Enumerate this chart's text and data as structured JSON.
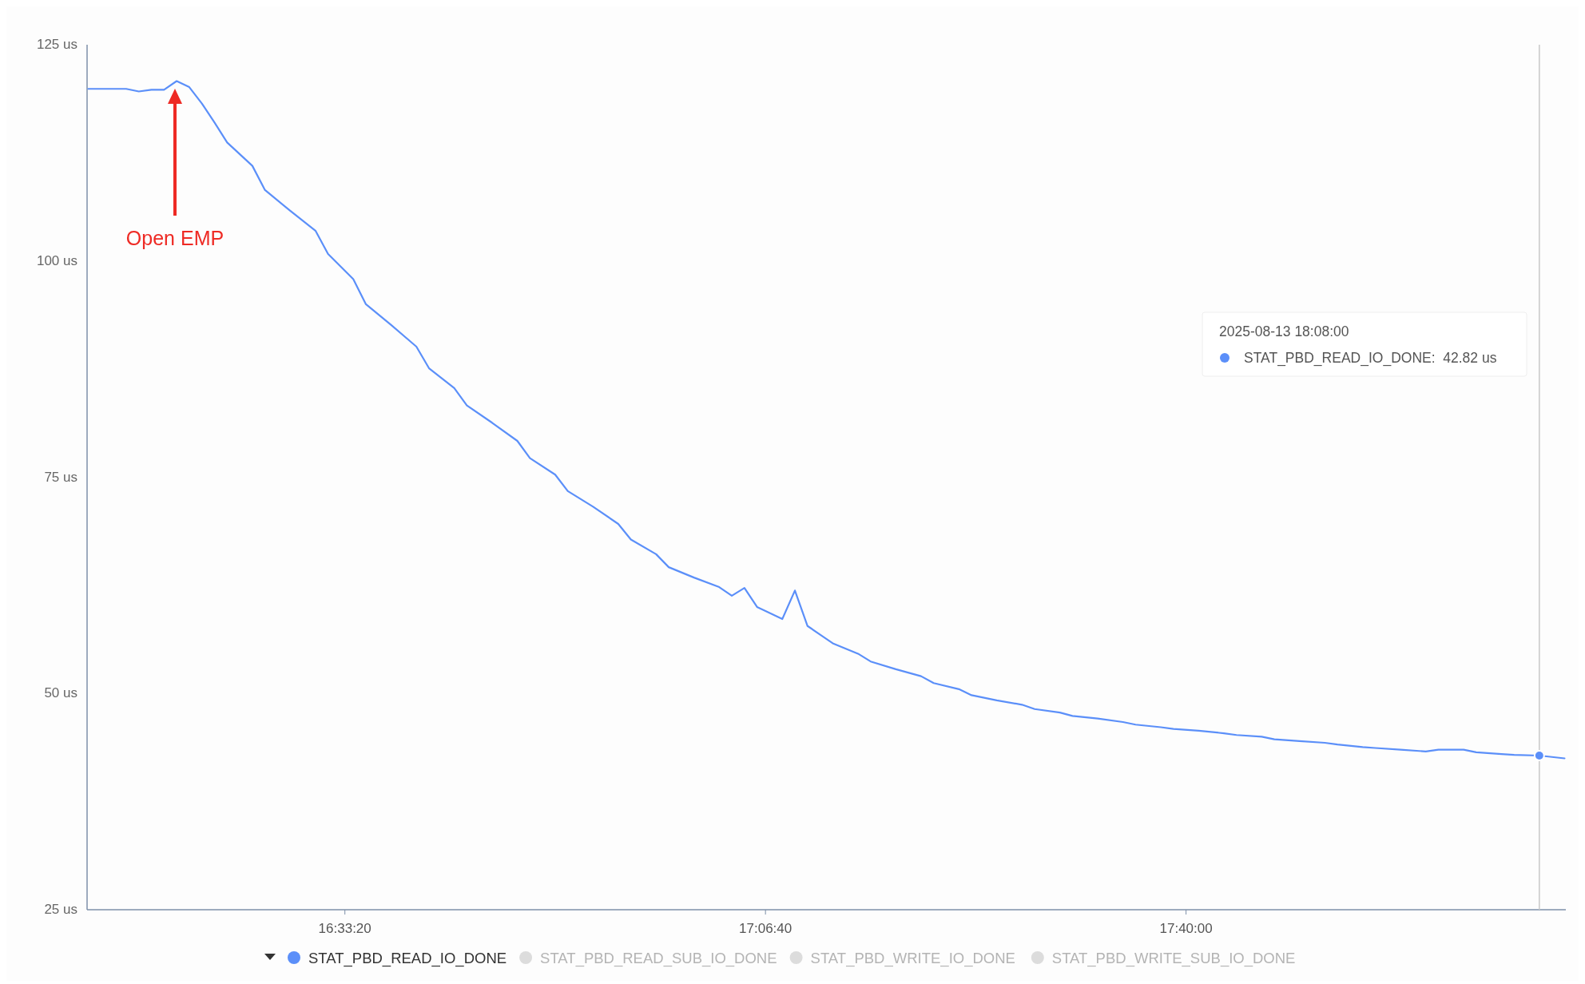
{
  "chart_data": {
    "type": "line",
    "x": [
      "2025-08-13T16:13",
      "2025-08-13T16:15",
      "2025-08-13T16:16",
      "2025-08-13T16:17",
      "2025-08-13T16:18",
      "2025-08-13T16:19",
      "2025-08-13T16:20",
      "2025-08-13T16:21",
      "2025-08-13T16:22",
      "2025-08-13T16:23",
      "2025-08-13T16:24",
      "2025-08-13T16:26",
      "2025-08-13T16:27",
      "2025-08-13T16:29",
      "2025-08-13T16:31",
      "2025-08-13T16:32",
      "2025-08-13T16:34",
      "2025-08-13T16:35",
      "2025-08-13T16:37",
      "2025-08-13T16:39",
      "2025-08-13T16:40",
      "2025-08-13T16:42",
      "2025-08-13T16:43",
      "2025-08-13T16:45",
      "2025-08-13T16:47",
      "2025-08-13T16:48",
      "2025-08-13T16:50",
      "2025-08-13T16:51",
      "2025-08-13T16:53",
      "2025-08-13T16:55",
      "2025-08-13T16:56",
      "2025-08-13T16:58",
      "2025-08-13T16:59",
      "2025-08-13T17:01",
      "2025-08-13T17:03",
      "2025-08-13T17:04",
      "2025-08-13T17:05",
      "2025-08-13T17:06",
      "2025-08-13T17:08",
      "2025-08-13T17:09",
      "2025-08-13T17:10",
      "2025-08-13T17:11",
      "2025-08-13T17:12",
      "2025-08-13T17:14",
      "2025-08-13T17:15",
      "2025-08-13T17:17",
      "2025-08-13T17:19",
      "2025-08-13T17:20",
      "2025-08-13T17:22",
      "2025-08-13T17:23",
      "2025-08-13T17:25",
      "2025-08-13T17:27",
      "2025-08-13T17:28",
      "2025-08-13T17:30",
      "2025-08-13T17:31",
      "2025-08-13T17:33",
      "2025-08-13T17:35",
      "2025-08-13T17:36",
      "2025-08-13T17:38",
      "2025-08-13T17:39",
      "2025-08-13T17:41",
      "2025-08-13T17:43",
      "2025-08-13T17:44",
      "2025-08-13T17:46",
      "2025-08-13T17:47",
      "2025-08-13T17:49",
      "2025-08-13T17:51",
      "2025-08-13T17:52",
      "2025-08-13T17:54",
      "2025-08-13T17:55",
      "2025-08-13T17:57",
      "2025-08-13T17:59",
      "2025-08-13T18:00",
      "2025-08-13T18:02",
      "2025-08-13T18:03",
      "2025-08-13T18:05",
      "2025-08-13T18:06",
      "2025-08-13T18:08",
      "2025-08-13T18:10"
    ],
    "series": [
      {
        "name": "STAT_PBD_READ_IO_DONE",
        "color": "#5b8ff9",
        "values": [
          119.9,
          119.9,
          119.9,
          119.6,
          119.8,
          119.8,
          120.8,
          120.1,
          118.2,
          116.0,
          113.7,
          111.0,
          108.2,
          105.8,
          103.5,
          100.8,
          97.9,
          95.0,
          92.6,
          90.1,
          87.6,
          85.3,
          83.3,
          81.3,
          79.2,
          77.2,
          75.3,
          73.4,
          71.6,
          69.6,
          67.8,
          66.1,
          64.6,
          63.4,
          62.3,
          61.3,
          62.2,
          60.0,
          58.6,
          61.9,
          57.8,
          56.8,
          55.8,
          54.6,
          53.7,
          52.8,
          52.0,
          51.2,
          50.5,
          49.8,
          49.2,
          48.7,
          48.2,
          47.8,
          47.4,
          47.1,
          46.7,
          46.4,
          46.1,
          45.9,
          45.7,
          45.4,
          45.2,
          45.0,
          44.7,
          44.5,
          44.3,
          44.1,
          43.8,
          43.7,
          43.5,
          43.3,
          43.5,
          43.5,
          43.2,
          43.0,
          42.9,
          42.82,
          42.5
        ]
      },
      {
        "name": "STAT_PBD_READ_SUB_IO_DONE",
        "color": "#dcdcdc",
        "values": [
          null,
          null,
          null,
          null,
          null,
          null,
          null,
          null,
          null,
          null,
          null,
          null,
          null,
          null,
          null,
          null,
          null,
          null,
          null,
          null,
          null,
          null,
          null,
          null,
          null,
          null,
          null,
          null,
          null,
          null,
          null,
          null,
          null,
          null,
          null,
          null,
          null,
          null,
          null,
          null,
          null,
          null,
          null,
          null,
          null,
          null,
          null,
          null,
          null,
          null,
          null,
          null,
          null,
          null,
          null,
          null,
          null,
          null,
          null,
          null,
          null,
          null,
          null,
          null,
          null,
          null,
          null,
          null,
          null,
          null,
          null,
          null,
          null,
          null,
          null,
          null,
          null,
          null,
          null
        ]
      },
      {
        "name": "STAT_PBD_WRITE_IO_DONE",
        "color": "#dcdcdc",
        "values": [
          null,
          null,
          null,
          null,
          null,
          null,
          null,
          null,
          null,
          null,
          null,
          null,
          null,
          null,
          null,
          null,
          null,
          null,
          null,
          null,
          null,
          null,
          null,
          null,
          null,
          null,
          null,
          null,
          null,
          null,
          null,
          null,
          null,
          null,
          null,
          null,
          null,
          null,
          null,
          null,
          null,
          null,
          null,
          null,
          null,
          null,
          null,
          null,
          null,
          null,
          null,
          null,
          null,
          null,
          null,
          null,
          null,
          null,
          null,
          null,
          null,
          null,
          null,
          null,
          null,
          null,
          null,
          null,
          null,
          null,
          null,
          null,
          null,
          null,
          null,
          null,
          null,
          null,
          null
        ]
      },
      {
        "name": "STAT_PBD_WRITE_SUB_IO_DONE",
        "color": "#dcdcdc",
        "values": [
          null,
          null,
          null,
          null,
          null,
          null,
          null,
          null,
          null,
          null,
          null,
          null,
          null,
          null,
          null,
          null,
          null,
          null,
          null,
          null,
          null,
          null,
          null,
          null,
          null,
          null,
          null,
          null,
          null,
          null,
          null,
          null,
          null,
          null,
          null,
          null,
          null,
          null,
          null,
          null,
          null,
          null,
          null,
          null,
          null,
          null,
          null,
          null,
          null,
          null,
          null,
          null,
          null,
          null,
          null,
          null,
          null,
          null,
          null,
          null,
          null,
          null,
          null,
          null,
          null,
          null,
          null,
          null,
          null,
          null,
          null,
          null,
          null,
          null,
          null,
          null,
          null,
          null,
          null
        ]
      }
    ],
    "xlim": [
      "2025-08-13T16:12:54",
      "2025-08-13T18:10:06"
    ],
    "xticks": [
      {
        "value": "2025-08-13T16:33:20",
        "label": "16:33:20"
      },
      {
        "value": "2025-08-13T17:06:40",
        "label": "17:06:40"
      },
      {
        "value": "2025-08-13T17:40:00",
        "label": "17:40:00"
      }
    ],
    "ylim": [
      25,
      125
    ],
    "yticks": [
      {
        "value": 25,
        "label": "25 us"
      },
      {
        "value": 50,
        "label": "50 us"
      },
      {
        "value": 75,
        "label": "75 us"
      },
      {
        "value": 100,
        "label": "100 us"
      },
      {
        "value": 125,
        "label": "125 us"
      }
    ],
    "ref_lines": [
      {
        "axis": "x",
        "value": "2025-08-13T18:08",
        "color": "#c8c8c8"
      }
    ],
    "annotations": [
      "Open EMP",
      "2025-08-13 18:08:00",
      "STAT_PBD_READ_IO_DONE:  42.82 us"
    ],
    "legend": "bottom",
    "grid": false,
    "marker": "none",
    "line_style": "solid"
  }
}
